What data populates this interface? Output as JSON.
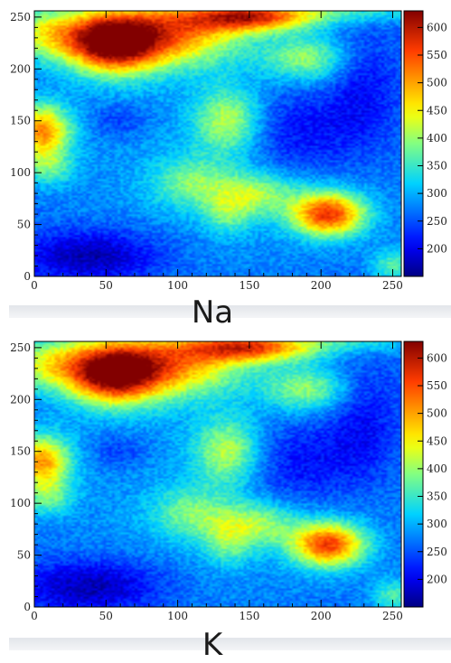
{
  "chart_data": [
    {
      "type": "heatmap",
      "title": "Na",
      "xlim": [
        0,
        256
      ],
      "ylim": [
        0,
        256
      ],
      "x_ticks": [
        "0",
        "50",
        "100",
        "150",
        "200",
        "250"
      ],
      "y_ticks": [
        "0",
        "50",
        "100",
        "150",
        "200",
        "250"
      ],
      "colorbar": {
        "range": [
          150,
          630
        ],
        "ticks": [
          "200",
          "250",
          "300",
          "350",
          "400",
          "450",
          "500",
          "550",
          "600"
        ]
      },
      "features": [
        {
          "x": 128,
          "y": 128,
          "sx": 400,
          "sy": 400,
          "amp": 290
        },
        {
          "x": 55,
          "y": 225,
          "sx": 22,
          "sy": 20,
          "amp": 330
        },
        {
          "x": 95,
          "y": 235,
          "sx": 35,
          "sy": 22,
          "amp": 230
        },
        {
          "x": 150,
          "y": 250,
          "sx": 30,
          "sy": 10,
          "amp": 260
        },
        {
          "x": 10,
          "y": 235,
          "sx": 25,
          "sy": 18,
          "amp": 160
        },
        {
          "x": 220,
          "y": 255,
          "sx": 50,
          "sy": 8,
          "amp": 80
        },
        {
          "x": 5,
          "y": 140,
          "sx": 14,
          "sy": 18,
          "amp": 240
        },
        {
          "x": 10,
          "y": 105,
          "sx": 12,
          "sy": 12,
          "amp": 90
        },
        {
          "x": 205,
          "y": 60,
          "sx": 18,
          "sy": 15,
          "amp": 290
        },
        {
          "x": 135,
          "y": 150,
          "sx": 16,
          "sy": 22,
          "amp": 140
        },
        {
          "x": 155,
          "y": 80,
          "sx": 20,
          "sy": 15,
          "amp": 120
        },
        {
          "x": 110,
          "y": 90,
          "sx": 20,
          "sy": 18,
          "amp": 100
        },
        {
          "x": 190,
          "y": 210,
          "sx": 20,
          "sy": 15,
          "amp": 120
        },
        {
          "x": 135,
          "y": 60,
          "sx": 12,
          "sy": 15,
          "amp": 80
        },
        {
          "x": 185,
          "y": 140,
          "sx": 30,
          "sy": 30,
          "amp": -70
        },
        {
          "x": 40,
          "y": 20,
          "sx": 35,
          "sy": 18,
          "amp": -100
        },
        {
          "x": 230,
          "y": 180,
          "sx": 18,
          "sy": 40,
          "amp": -60
        },
        {
          "x": 250,
          "y": 10,
          "sx": 10,
          "sy": 12,
          "amp": 100
        },
        {
          "x": 60,
          "y": 150,
          "sx": 15,
          "sy": 12,
          "amp": -40
        }
      ]
    },
    {
      "type": "heatmap",
      "title": "K",
      "xlim": [
        0,
        256
      ],
      "ylim": [
        0,
        256
      ],
      "x_ticks": [
        "0",
        "50",
        "100",
        "150",
        "200",
        "250"
      ],
      "y_ticks": [
        "0",
        "50",
        "100",
        "150",
        "200",
        "250"
      ],
      "colorbar": {
        "range": [
          150,
          630
        ],
        "ticks": [
          "200",
          "250",
          "300",
          "350",
          "400",
          "450",
          "500",
          "550",
          "600"
        ]
      },
      "features": [
        {
          "x": 128,
          "y": 128,
          "sx": 400,
          "sy": 400,
          "amp": 290
        },
        {
          "x": 55,
          "y": 225,
          "sx": 22,
          "sy": 20,
          "amp": 320
        },
        {
          "x": 95,
          "y": 235,
          "sx": 35,
          "sy": 22,
          "amp": 220
        },
        {
          "x": 150,
          "y": 250,
          "sx": 30,
          "sy": 10,
          "amp": 240
        },
        {
          "x": 10,
          "y": 235,
          "sx": 25,
          "sy": 18,
          "amp": 150
        },
        {
          "x": 220,
          "y": 255,
          "sx": 50,
          "sy": 8,
          "amp": 70
        },
        {
          "x": 5,
          "y": 140,
          "sx": 14,
          "sy": 18,
          "amp": 230
        },
        {
          "x": 10,
          "y": 105,
          "sx": 12,
          "sy": 12,
          "amp": 90
        },
        {
          "x": 205,
          "y": 60,
          "sx": 18,
          "sy": 15,
          "amp": 280
        },
        {
          "x": 135,
          "y": 150,
          "sx": 16,
          "sy": 22,
          "amp": 140
        },
        {
          "x": 155,
          "y": 80,
          "sx": 20,
          "sy": 15,
          "amp": 120
        },
        {
          "x": 110,
          "y": 90,
          "sx": 20,
          "sy": 18,
          "amp": 100
        },
        {
          "x": 190,
          "y": 210,
          "sx": 20,
          "sy": 15,
          "amp": 120
        },
        {
          "x": 135,
          "y": 60,
          "sx": 12,
          "sy": 15,
          "amp": 80
        },
        {
          "x": 185,
          "y": 140,
          "sx": 30,
          "sy": 30,
          "amp": -70
        },
        {
          "x": 40,
          "y": 20,
          "sx": 35,
          "sy": 18,
          "amp": -100
        },
        {
          "x": 230,
          "y": 180,
          "sx": 18,
          "sy": 40,
          "amp": -60
        },
        {
          "x": 250,
          "y": 10,
          "sx": 10,
          "sy": 12,
          "amp": 100
        },
        {
          "x": 60,
          "y": 150,
          "sx": 15,
          "sy": 12,
          "amp": -40
        }
      ]
    }
  ]
}
